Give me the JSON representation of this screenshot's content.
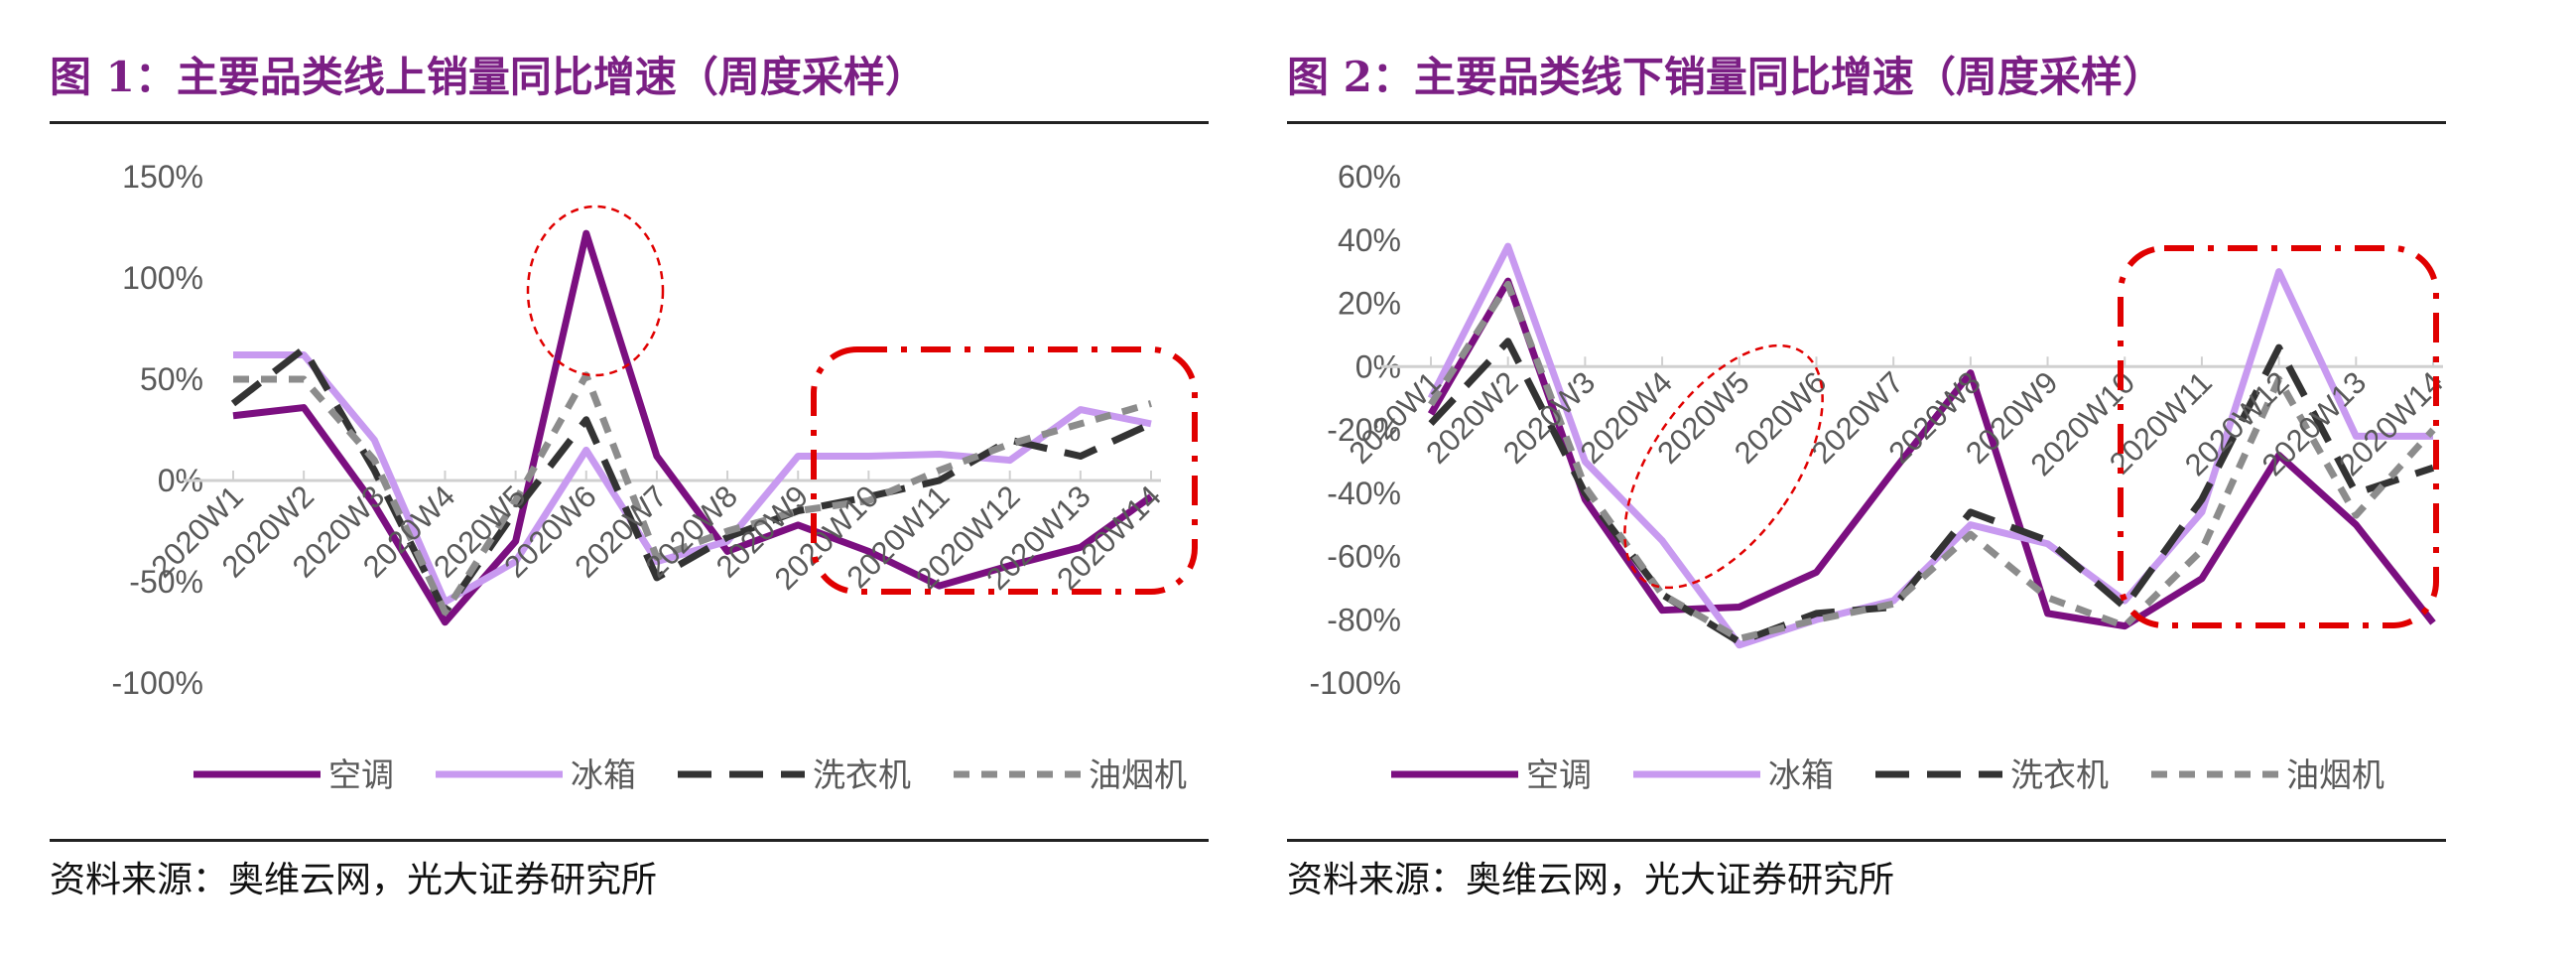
{
  "figures": [
    {
      "title": "图 1：主要品类线上销量同比增速（周度采样）",
      "source": "资料来源：奥维云网，光大证券研究所"
    },
    {
      "title": "图 2：主要品类线下销量同比增速（周度采样）",
      "source": "资料来源：奥维云网，光大证券研究所"
    }
  ],
  "chart_data": [
    {
      "type": "line",
      "title": "图 1：主要品类线上销量同比增速（周度采样）",
      "categories": [
        "2020W1",
        "2020W2",
        "2020W3",
        "2020W4",
        "2020W5",
        "2020W6",
        "2020W7",
        "2020W8",
        "2020W9",
        "2020W10",
        "2020W11",
        "2020W12",
        "2020W13",
        "2020W14"
      ],
      "y_ticks": [
        "150%",
        "100%",
        "50%",
        "0%",
        "-50%",
        "-100%"
      ],
      "ylim": [
        -100,
        150
      ],
      "series": [
        {
          "name": "空调",
          "color": "#7b0f80",
          "dash": "solid",
          "values": [
            32,
            36,
            -12,
            -70,
            -30,
            122,
            12,
            -35,
            -22,
            -35,
            -52,
            -42,
            -33,
            -8
          ]
        },
        {
          "name": "冰箱",
          "color": "#c89af0",
          "dash": "solid",
          "values": [
            62,
            62,
            20,
            -60,
            -40,
            15,
            -40,
            -30,
            12,
            12,
            13,
            10,
            35,
            28
          ]
        },
        {
          "name": "洗衣机",
          "color": "#333333",
          "dash": "long",
          "values": [
            38,
            65,
            5,
            -65,
            -15,
            30,
            -48,
            -28,
            -15,
            -8,
            0,
            20,
            12,
            28
          ]
        },
        {
          "name": "油烟机",
          "color": "#8c8c8c",
          "dash": "short",
          "values": [
            50,
            50,
            10,
            -65,
            -10,
            52,
            -38,
            -25,
            -15,
            -10,
            5,
            18,
            28,
            38
          ]
        }
      ],
      "legend_position": "bottom",
      "grid": false
    },
    {
      "type": "line",
      "title": "图 2：主要品类线下销量同比增速（周度采样）",
      "categories": [
        "2020W1",
        "2020W2",
        "2020W3",
        "2020W4",
        "2020W5",
        "2020W6",
        "2020W7",
        "2020W8",
        "2020W9",
        "2020W10",
        "2020W11",
        "2020W12",
        "2020W13",
        "2020W14"
      ],
      "y_ticks": [
        "60%",
        "40%",
        "20%",
        "0%",
        "-20%",
        "-40%",
        "-60%",
        "-80%",
        "-100%"
      ],
      "ylim": [
        -100,
        60
      ],
      "series": [
        {
          "name": "空调",
          "color": "#7b0f80",
          "dash": "solid",
          "values": [
            -15,
            27,
            -42,
            -77,
            -76,
            -65,
            -33,
            -2,
            -78,
            -82,
            -67,
            -28,
            -50,
            -81
          ]
        },
        {
          "name": "冰箱",
          "color": "#c89af0",
          "dash": "solid",
          "values": [
            -10,
            38,
            -30,
            -55,
            -88,
            -80,
            -74,
            -50,
            -56,
            -74,
            -46,
            30,
            -22,
            -22
          ]
        },
        {
          "name": "洗衣机",
          "color": "#333333",
          "dash": "long",
          "values": [
            -18,
            8,
            -40,
            -72,
            -87,
            -78,
            -76,
            -46,
            -55,
            -76,
            -42,
            6,
            -40,
            -32
          ]
        },
        {
          "name": "油烟机",
          "color": "#8c8c8c",
          "dash": "short",
          "values": [
            -12,
            26,
            -38,
            -72,
            -86,
            -80,
            -75,
            -53,
            -73,
            -82,
            -58,
            -4,
            -47,
            -20
          ]
        }
      ],
      "legend_position": "bottom",
      "grid": false
    }
  ]
}
